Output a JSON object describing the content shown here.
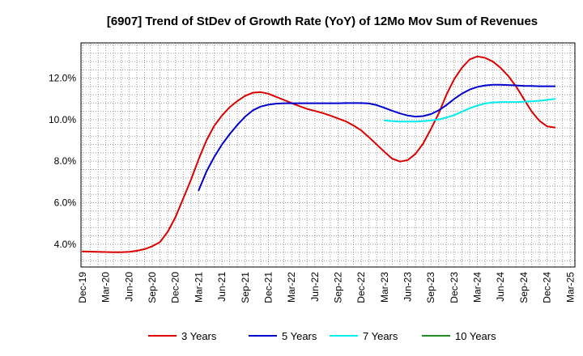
{
  "chart_data": {
    "type": "line",
    "title": "[6907]  Trend of StDev of Growth Rate (YoY) of 12Mo Mov Sum of Revenues",
    "xlabel": "",
    "ylabel": "",
    "x_ticks": [
      "Dec-19",
      "Mar-20",
      "Jun-20",
      "Sep-20",
      "Dec-20",
      "Mar-21",
      "Jun-21",
      "Sep-21",
      "Dec-21",
      "Mar-22",
      "Jun-22",
      "Sep-22",
      "Dec-22",
      "Mar-23",
      "Jun-23",
      "Sep-23",
      "Dec-23",
      "Mar-24",
      "Jun-24",
      "Sep-24",
      "Dec-24",
      "Mar-25"
    ],
    "y_ticks": [
      "4.0%",
      "6.0%",
      "8.0%",
      "10.0%",
      "12.0%"
    ],
    "y_tick_values": [
      4,
      6,
      8,
      10,
      12
    ],
    "ylim": [
      2.9,
      13.7
    ],
    "x_index_range": [
      0,
      63
    ],
    "grid": true,
    "legend_position": "bottom",
    "series": [
      {
        "name": "3 Years",
        "color": "#dd0000",
        "start_index": 0,
        "values": [
          3.65,
          3.64,
          3.63,
          3.62,
          3.61,
          3.61,
          3.63,
          3.68,
          3.76,
          3.9,
          4.1,
          4.6,
          5.3,
          6.2,
          7.1,
          8.1,
          9.0,
          9.7,
          10.2,
          10.6,
          10.9,
          11.15,
          11.3,
          11.33,
          11.25,
          11.1,
          10.95,
          10.8,
          10.65,
          10.52,
          10.42,
          10.32,
          10.2,
          10.06,
          9.92,
          9.72,
          9.48,
          9.15,
          8.8,
          8.45,
          8.12,
          7.98,
          8.05,
          8.35,
          8.85,
          9.55,
          10.3,
          11.2,
          11.95,
          12.5,
          12.9,
          13.05,
          12.98,
          12.8,
          12.5,
          12.1,
          11.6,
          11.0,
          10.4,
          9.95,
          9.68,
          9.62
        ]
      },
      {
        "name": "5 Years",
        "color": "#0000cc",
        "start_index": 15,
        "values": [
          6.6,
          7.5,
          8.2,
          8.8,
          9.3,
          9.75,
          10.15,
          10.45,
          10.63,
          10.72,
          10.77,
          10.79,
          10.79,
          10.79,
          10.79,
          10.79,
          10.79,
          10.79,
          10.79,
          10.8,
          10.8,
          10.8,
          10.78,
          10.7,
          10.57,
          10.43,
          10.3,
          10.2,
          10.15,
          10.17,
          10.27,
          10.45,
          10.7,
          11.0,
          11.25,
          11.45,
          11.58,
          11.65,
          11.68,
          11.68,
          11.67,
          11.65,
          11.63,
          11.62,
          11.61,
          11.61,
          11.61
        ]
      },
      {
        "name": "7 Years",
        "color": "#00eeee",
        "start_index": 39,
        "values": [
          9.97,
          9.93,
          9.91,
          9.91,
          9.91,
          9.93,
          9.96,
          10.01,
          10.1,
          10.22,
          10.38,
          10.55,
          10.68,
          10.78,
          10.83,
          10.85,
          10.85,
          10.85,
          10.86,
          10.88,
          10.91,
          10.95,
          11.0
        ]
      },
      {
        "name": "10 Years",
        "color": "#228b22",
        "start_index": 0,
        "values": []
      }
    ]
  }
}
